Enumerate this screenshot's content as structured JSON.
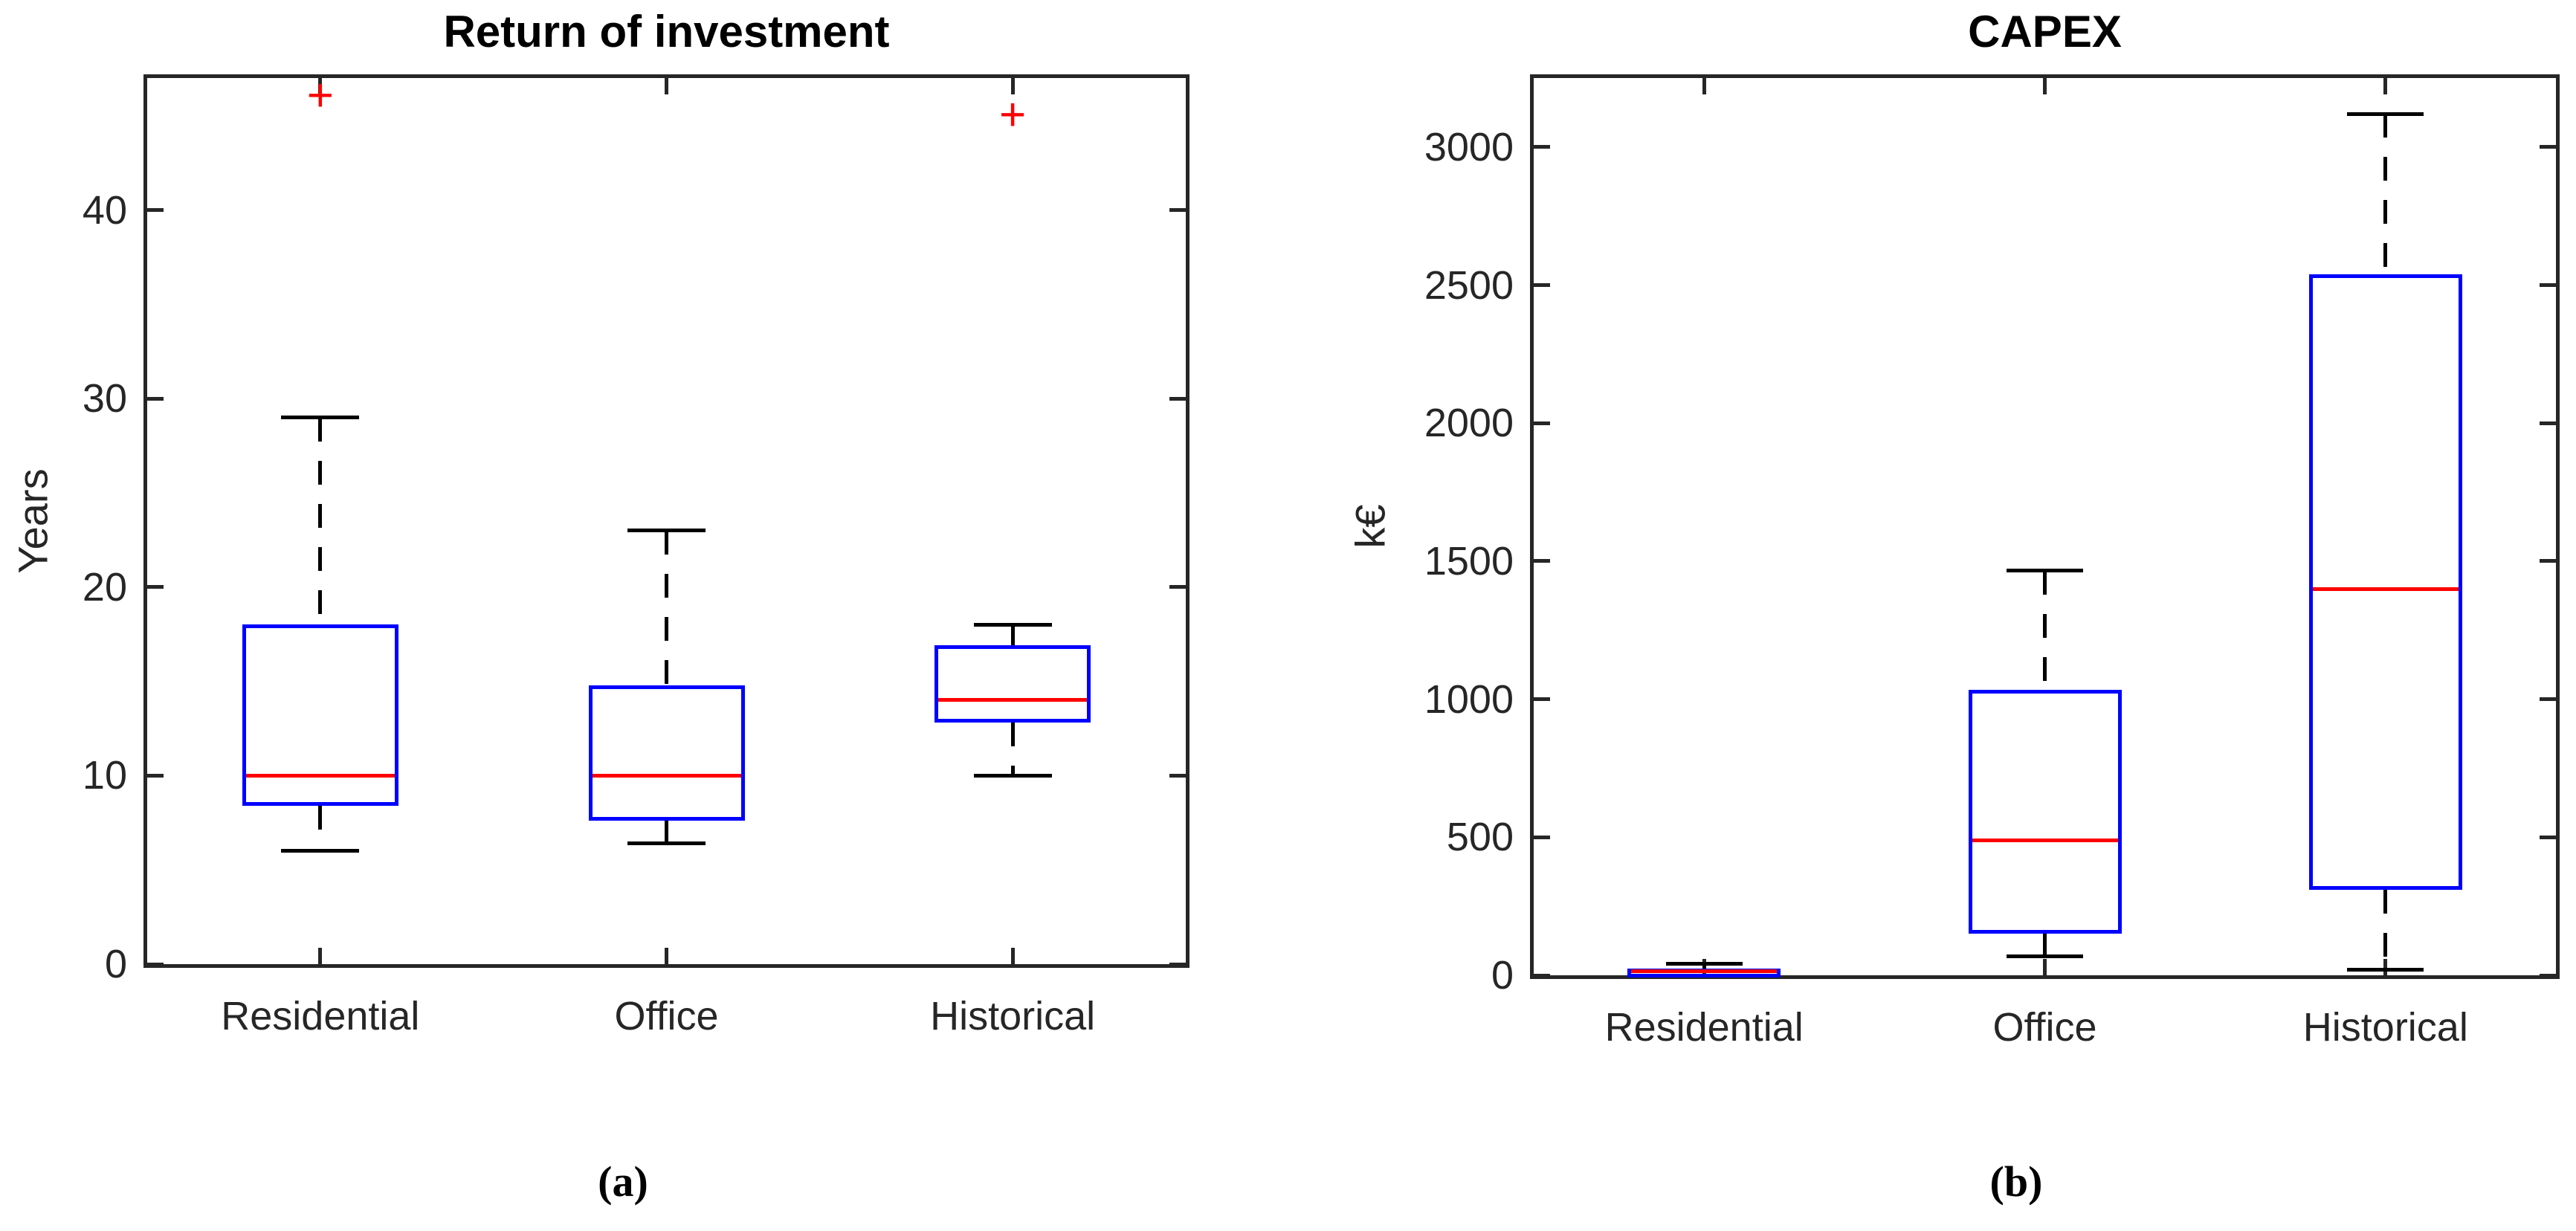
{
  "figure": {
    "background": "#ffffff",
    "colors": {
      "box": "#0000ff",
      "median": "#ff0000",
      "outlier": "#ff0000",
      "whisker": "#000000",
      "axis": "#262626",
      "tick_text": "#262626",
      "title_text": "#000000"
    }
  },
  "chart_data": [
    {
      "type": "box",
      "title": "Return of investment",
      "ylabel": "Years",
      "panel_label": "(a)",
      "categories": [
        "Residential",
        "Office",
        "Historical"
      ],
      "ylim": [
        0,
        47
      ],
      "yticks": [
        0,
        10,
        20,
        30,
        40
      ],
      "grid": false,
      "legend": null,
      "series": [
        {
          "category": "Residential",
          "whisker_low": 6,
          "q1": 8.4,
          "median": 10,
          "q3": 18,
          "whisker_high": 29,
          "outliers": [
            46
          ]
        },
        {
          "category": "Office",
          "whisker_low": 6.4,
          "q1": 7.6,
          "median": 10,
          "q3": 14.8,
          "whisker_high": 23,
          "outliers": []
        },
        {
          "category": "Historical",
          "whisker_low": 10,
          "q1": 12.8,
          "median": 14,
          "q3": 16.9,
          "whisker_high": 18,
          "outliers": [
            45
          ]
        }
      ]
    },
    {
      "type": "box",
      "title": "CAPEX",
      "ylabel": "k€",
      "panel_label": "(b)",
      "categories": [
        "Residential",
        "Office",
        "Historical"
      ],
      "ylim": [
        0,
        3250
      ],
      "yticks": [
        0,
        500,
        1000,
        1500,
        2000,
        2500,
        3000
      ],
      "grid": false,
      "legend": null,
      "series": [
        {
          "category": "Residential",
          "whisker_low": 2,
          "q1": 8,
          "median": 15,
          "q3": 25,
          "whisker_high": 42,
          "outliers": []
        },
        {
          "category": "Office",
          "whisker_low": 70,
          "q1": 150,
          "median": 490,
          "q3": 1035,
          "whisker_high": 1465,
          "outliers": []
        },
        {
          "category": "Historical",
          "whisker_low": 20,
          "q1": 310,
          "median": 1400,
          "q3": 2540,
          "whisker_high": 3120,
          "outliers": []
        }
      ]
    }
  ]
}
